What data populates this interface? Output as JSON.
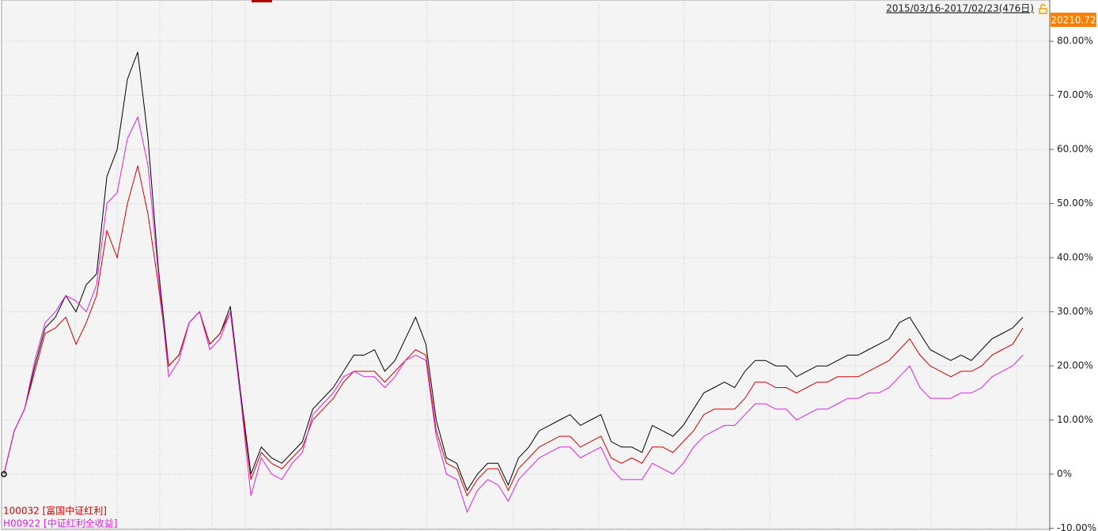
{
  "chart_data": {
    "type": "line",
    "title": "2015/03/16-2017/02/23(476日)",
    "current_value": "20210.72",
    "categories": [
      null,
      null,
      null,
      null,
      null,
      null,
      null,
      null,
      null,
      null,
      null,
      null,
      null,
      null,
      null,
      null,
      null,
      null,
      null,
      null,
      null,
      null,
      null,
      null,
      null,
      null,
      null,
      null,
      null,
      null,
      null,
      null,
      null,
      null,
      null,
      null,
      null,
      null,
      null,
      null,
      null,
      null,
      null,
      null,
      null,
      null,
      null,
      null,
      null,
      null,
      null,
      null,
      null,
      null,
      null,
      null,
      null,
      null,
      null,
      null,
      null,
      null,
      null,
      null,
      null,
      null,
      null,
      null,
      null,
      null,
      null,
      null,
      null,
      null,
      null,
      null,
      null,
      null,
      null,
      null,
      null,
      null,
      null,
      null,
      null,
      null,
      null,
      null,
      null,
      null,
      null,
      null,
      null,
      null,
      null,
      null,
      null,
      null,
      null,
      null
    ],
    "series": [
      {
        "color": "#000000",
        "values": [
          0,
          8,
          12,
          20,
          27,
          29,
          33,
          30,
          35,
          37,
          55,
          60,
          73,
          78,
          62,
          38,
          20,
          22,
          28,
          30,
          24,
          26,
          31,
          15,
          0,
          5,
          3,
          2,
          4,
          6,
          12,
          14,
          16,
          19,
          22,
          22,
          23,
          19,
          21,
          25,
          29,
          24,
          10,
          3,
          2,
          -3,
          0,
          2,
          2,
          -2,
          3,
          5,
          8,
          9,
          10,
          11,
          9,
          10,
          11,
          6,
          5,
          5,
          4,
          9,
          8,
          7,
          9,
          12,
          15,
          16,
          17,
          16,
          19,
          21,
          21,
          20,
          20,
          18,
          19,
          20,
          20,
          21,
          22,
          22,
          23,
          24,
          25,
          28,
          29,
          26,
          23,
          22,
          21,
          22,
          21,
          23,
          25,
          26,
          27,
          29
        ]
      },
      {
        "name": "100032 [富国中证红利]",
        "color": "#d00000",
        "values": [
          0,
          8,
          12,
          19,
          26,
          27,
          29,
          24,
          28,
          33,
          45,
          40,
          50,
          57,
          48,
          35,
          20,
          22,
          28,
          30,
          24,
          26,
          30,
          14,
          -1,
          4,
          2,
          1,
          3,
          5,
          10,
          12,
          14,
          17,
          19,
          19,
          19,
          17,
          19,
          21,
          23,
          22,
          8,
          2,
          1,
          -4,
          -1,
          1,
          1,
          -3,
          1,
          3,
          5,
          6,
          7,
          7,
          5,
          6,
          7,
          3,
          2,
          3,
          2,
          5,
          5,
          4,
          6,
          8,
          11,
          12,
          12,
          12,
          14,
          17,
          17,
          16,
          16,
          15,
          16,
          17,
          17,
          18,
          18,
          18,
          19,
          20,
          21,
          23,
          25,
          22,
          20,
          19,
          18,
          19,
          19,
          20,
          22,
          23,
          24,
          27
        ]
      },
      {
        "name": "H00922 [中证红利全收益]",
        "color": "#e020e0",
        "values": [
          0,
          8,
          12,
          21,
          28,
          30,
          33,
          32,
          30,
          35,
          50,
          52,
          62,
          66,
          57,
          37,
          18,
          21,
          28,
          30,
          23,
          25,
          30,
          14,
          -4,
          3,
          0,
          -1,
          2,
          4,
          11,
          13,
          15,
          18,
          19,
          18,
          18,
          16,
          18,
          21,
          22,
          21,
          7,
          0,
          -1,
          -7,
          -3,
          -1,
          -2,
          -5,
          -1,
          1,
          3,
          4,
          5,
          5,
          3,
          4,
          5,
          1,
          -1,
          -1,
          -1,
          2,
          1,
          0,
          2,
          5,
          7,
          8,
          9,
          9,
          11,
          13,
          13,
          12,
          12,
          10,
          11,
          12,
          12,
          13,
          14,
          14,
          15,
          15,
          16,
          18,
          20,
          16,
          14,
          14,
          14,
          15,
          15,
          16,
          18,
          19,
          20,
          22
        ]
      }
    ],
    "ylim": [
      -10,
      84.7
    ],
    "yticks": [
      {
        "value": -10,
        "label": "-10.00%"
      },
      {
        "value": 0,
        "label": "0%"
      },
      {
        "value": 10,
        "label": "10.00%"
      },
      {
        "value": 20,
        "label": "20.00%"
      },
      {
        "value": 30,
        "label": "30.00%"
      },
      {
        "value": 40,
        "label": "40.00%"
      },
      {
        "value": 50,
        "label": "50.00%"
      },
      {
        "value": 60,
        "label": "60.00%"
      },
      {
        "value": 70,
        "label": "70.00%"
      },
      {
        "value": 80,
        "label": "80.00%"
      }
    ],
    "grid": true,
    "legend": "lower left"
  }
}
